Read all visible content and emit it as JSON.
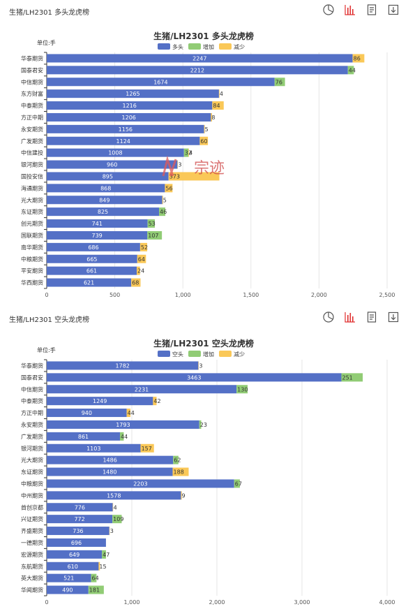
{
  "toolbar_icons": [
    "pie-icon",
    "bar-chart-icon",
    "data-view-icon",
    "download-icon"
  ],
  "colors": {
    "primary": "#5470c6",
    "green": "#91cc75",
    "yellow": "#fac858",
    "active_icon": "#e03030"
  },
  "watermark": {
    "text": "宗迹"
  },
  "panels": [
    {
      "header_title": "生猪/LH2301 多头龙虎榜"
    },
    {
      "header_title": "生猪/LH2301 空头龙虎榜"
    }
  ],
  "chart_data": [
    {
      "type": "bar",
      "orientation": "horizontal",
      "stacked": true,
      "title": "生猪/LH2301 多头龙虎榜",
      "unit_label": "单位:手",
      "legend": [
        "多头",
        "增加",
        "减少"
      ],
      "legend_position": "top-center",
      "xlim": [
        0,
        2500
      ],
      "xticks": [
        "0",
        "500",
        "1,000",
        "1,500",
        "2,000",
        "2,500"
      ],
      "grid": true,
      "categories": [
        "华泰期货",
        "国泰君安",
        "中信期货",
        "东方财富",
        "中泰期货",
        "方正中期",
        "永安期货",
        "广发期货",
        "中信建投",
        "银河期货",
        "国投安信",
        "海通期货",
        "光大期货",
        "东证期货",
        "创元期货",
        "国联期货",
        "南华期货",
        "中粮期货",
        "平安期货",
        "华西期货"
      ],
      "series": [
        {
          "name": "多头",
          "values": [
            2247,
            2212,
            1674,
            1265,
            1216,
            1206,
            1156,
            1124,
            1008,
            960,
            895,
            868,
            849,
            825,
            741,
            739,
            686,
            665,
            661,
            621
          ]
        },
        {
          "name": "增加",
          "values": [
            null,
            44,
            76,
            null,
            null,
            null,
            null,
            null,
            32,
            null,
            null,
            null,
            null,
            46,
            53,
            107,
            null,
            null,
            null,
            null
          ]
        },
        {
          "name": "减少",
          "values": [
            86,
            null,
            null,
            4,
            84,
            8,
            5,
            60,
            4,
            3,
            373,
            56,
            5,
            null,
            null,
            null,
            52,
            64,
            24,
            68
          ]
        }
      ]
    },
    {
      "type": "bar",
      "orientation": "horizontal",
      "stacked": true,
      "title": "生猪/LH2301 空头龙虎榜",
      "unit_label": "单位:手",
      "legend": [
        "空头",
        "增加",
        "减少"
      ],
      "legend_position": "top-center",
      "xlim": [
        0,
        4000
      ],
      "xticks": [
        "0",
        "1,000",
        "2,000",
        "3,000",
        "4,000"
      ],
      "grid": true,
      "categories": [
        "华泰期货",
        "国泰君安",
        "中信期货",
        "中泰期货",
        "方正中期",
        "永安期货",
        "广发期货",
        "银河期货",
        "光大期货",
        "东证期货",
        "中粮期货",
        "中州期货",
        "首创京都",
        "兴证期货",
        "齐盛期货",
        "一德期货",
        "宏源期货",
        "东航期货",
        "英大期货",
        "华闻期货"
      ],
      "series": [
        {
          "name": "空头",
          "values": [
            1782,
            3463,
            2231,
            1249,
            940,
            1793,
            861,
            1103,
            1486,
            1480,
            2203,
            1578,
            776,
            772,
            736,
            696,
            649,
            610,
            521,
            490
          ]
        },
        {
          "name": "增加",
          "values": [
            null,
            251,
            130,
            null,
            null,
            23,
            44,
            null,
            62,
            null,
            67,
            null,
            null,
            109,
            null,
            null,
            47,
            null,
            64,
            181
          ]
        },
        {
          "name": "减少",
          "values": [
            3,
            null,
            null,
            42,
            44,
            null,
            null,
            157,
            null,
            188,
            null,
            9,
            4,
            null,
            3,
            null,
            null,
            15,
            null,
            null
          ]
        }
      ]
    }
  ]
}
